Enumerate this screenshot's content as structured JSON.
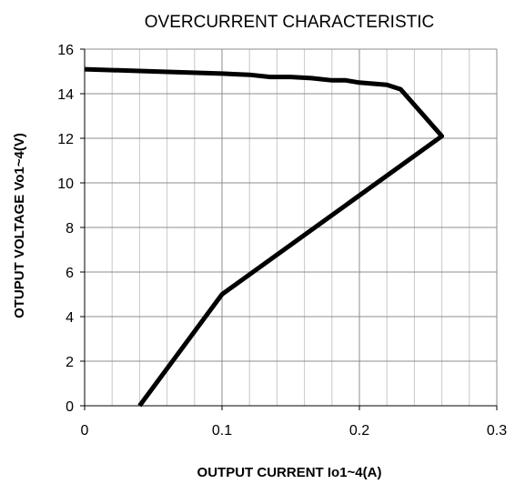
{
  "chart_data": {
    "type": "line",
    "title": "OVERCURRENT CHARACTERISTIC",
    "xlabel": "OUTPUT CURRENT Io1~4(A)",
    "ylabel": "OTUPUT VOLTAGE Vo1~4(V)",
    "xlim": [
      0,
      0.3
    ],
    "ylim": [
      0,
      16
    ],
    "x_ticks": [
      0,
      0.1,
      0.2,
      0.3
    ],
    "x_tick_labels": [
      "0",
      "0.1",
      "0.2",
      "0.3"
    ],
    "y_ticks": [
      0,
      2,
      4,
      6,
      8,
      10,
      12,
      14,
      16
    ],
    "y_tick_labels": [
      "0",
      "2",
      "4",
      "6",
      "8",
      "10",
      "12",
      "14",
      "16"
    ],
    "x_minor_step": 0.02,
    "grid": true,
    "legend": "none",
    "series": [
      {
        "x": [
          0,
          0.05,
          0.1,
          0.12,
          0.135,
          0.15,
          0.165,
          0.18,
          0.19,
          0.2,
          0.22,
          0.23,
          0.26,
          0.1,
          0.04
        ],
        "values": [
          15.1,
          15.0,
          14.9,
          14.85,
          14.75,
          14.75,
          14.7,
          14.6,
          14.6,
          14.5,
          14.4,
          14.2,
          12.1,
          5.0,
          0
        ],
        "color": "#000000"
      }
    ]
  }
}
